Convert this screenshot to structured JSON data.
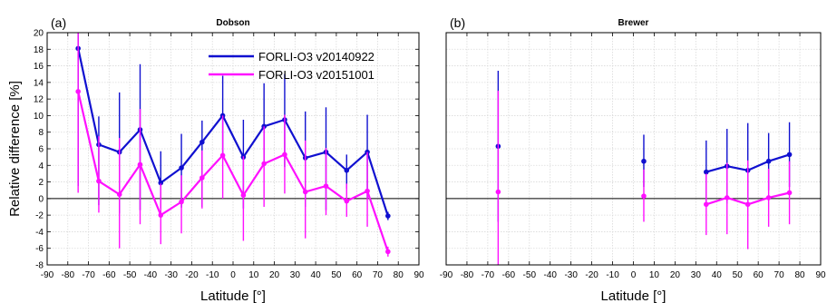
{
  "chart_data": [
    {
      "type": "line",
      "panel_label": "(a)",
      "title": "Dobson",
      "xlabel": "Latitude [°]",
      "ylabel": "Relative difference [%]",
      "xlim": [
        -90,
        90
      ],
      "ylim": [
        -8,
        20
      ],
      "xticks": [
        -90,
        -80,
        -70,
        -60,
        -50,
        -40,
        -30,
        -20,
        -10,
        0,
        10,
        20,
        30,
        40,
        50,
        60,
        70,
        80,
        90
      ],
      "yticks": [
        -8,
        -6,
        -4,
        -2,
        0,
        2,
        4,
        6,
        8,
        10,
        12,
        14,
        16,
        18,
        20
      ],
      "grid": true,
      "legend_position": "top-right",
      "x": [
        -75,
        -65,
        -55,
        -45,
        -35,
        -25,
        -15,
        -5,
        5,
        15,
        25,
        35,
        45,
        55,
        65,
        75
      ],
      "series": [
        {
          "name": "FORLI-O3 v20140922",
          "color": "#1010d0",
          "values": [
            18.1,
            6.5,
            5.6,
            8.3,
            1.9,
            3.7,
            6.8,
            10.0,
            5.0,
            8.7,
            9.5,
            4.9,
            5.6,
            3.4,
            5.6,
            -2.1
          ],
          "err_low": [
            1.5,
            -0.8,
            -1.8,
            -1.4,
            -1.2,
            -1.1,
            -1.0,
            5.0,
            -1.2,
            4.1,
            3.8,
            -1.0,
            -1.4,
            1.2,
            0.0,
            -2.6
          ],
          "err_high": [
            20.0,
            9.9,
            12.8,
            16.2,
            5.7,
            7.8,
            9.4,
            14.8,
            9.5,
            13.9,
            15.0,
            10.5,
            11.0,
            5.3,
            10.1,
            -1.6
          ]
        },
        {
          "name": "FORLI-O3 v20151001",
          "color": "#ff10ff",
          "values": [
            12.9,
            2.1,
            0.5,
            4.1,
            -2.0,
            -0.4,
            2.5,
            5.2,
            0.4,
            4.2,
            5.3,
            0.8,
            1.5,
            -0.3,
            0.9,
            -6.4
          ],
          "err_low": [
            0.7,
            -1.7,
            -6.0,
            -3.1,
            -5.5,
            -4.2,
            -1.2,
            0.0,
            -5.1,
            -1.0,
            0.6,
            -4.8,
            -2.0,
            -2.2,
            -3.4,
            -7.0
          ],
          "err_high": [
            20.0,
            7.5,
            7.3,
            10.8,
            1.8,
            2.8,
            5.8,
            10.0,
            5.1,
            8.7,
            10.1,
            7.0,
            6.1,
            1.8,
            5.6,
            -5.8
          ]
        }
      ]
    },
    {
      "type": "line",
      "panel_label": "(b)",
      "title": "Brewer",
      "xlabel": "Latitude [°]",
      "ylabel": "",
      "xlim": [
        -90,
        90
      ],
      "ylim": [
        -8,
        20
      ],
      "xticks": [
        -90,
        -80,
        -70,
        -60,
        -50,
        -40,
        -30,
        -20,
        -10,
        0,
        10,
        20,
        30,
        40,
        50,
        60,
        70,
        80,
        90
      ],
      "grid": true,
      "segments": [
        [
          0
        ],
        [
          1
        ],
        [
          2,
          3,
          4,
          5,
          6
        ]
      ],
      "x": [
        -65,
        5,
        35,
        45,
        55,
        65,
        75
      ],
      "series": [
        {
          "name": "FORLI-O3 v20140922",
          "color": "#1010d0",
          "values": [
            6.3,
            4.5,
            3.2,
            3.9,
            3.4,
            4.5,
            5.3
          ],
          "err_low": [
            -2.8,
            1.4,
            -0.6,
            -0.6,
            -1.0,
            1.0,
            1.4
          ],
          "err_high": [
            15.4,
            7.7,
            7.0,
            8.4,
            9.1,
            7.9,
            9.2
          ]
        },
        {
          "name": "FORLI-O3 v20151001",
          "color": "#ff10ff",
          "values": [
            0.8,
            0.3,
            -0.7,
            0.1,
            -0.7,
            0.1,
            0.7
          ],
          "err_low": [
            -8.0,
            -2.8,
            -4.4,
            -4.3,
            -6.1,
            -3.4,
            -3.1
          ],
          "err_high": [
            13.0,
            3.5,
            3.0,
            4.3,
            4.6,
            3.6,
            4.5
          ]
        }
      ]
    }
  ]
}
